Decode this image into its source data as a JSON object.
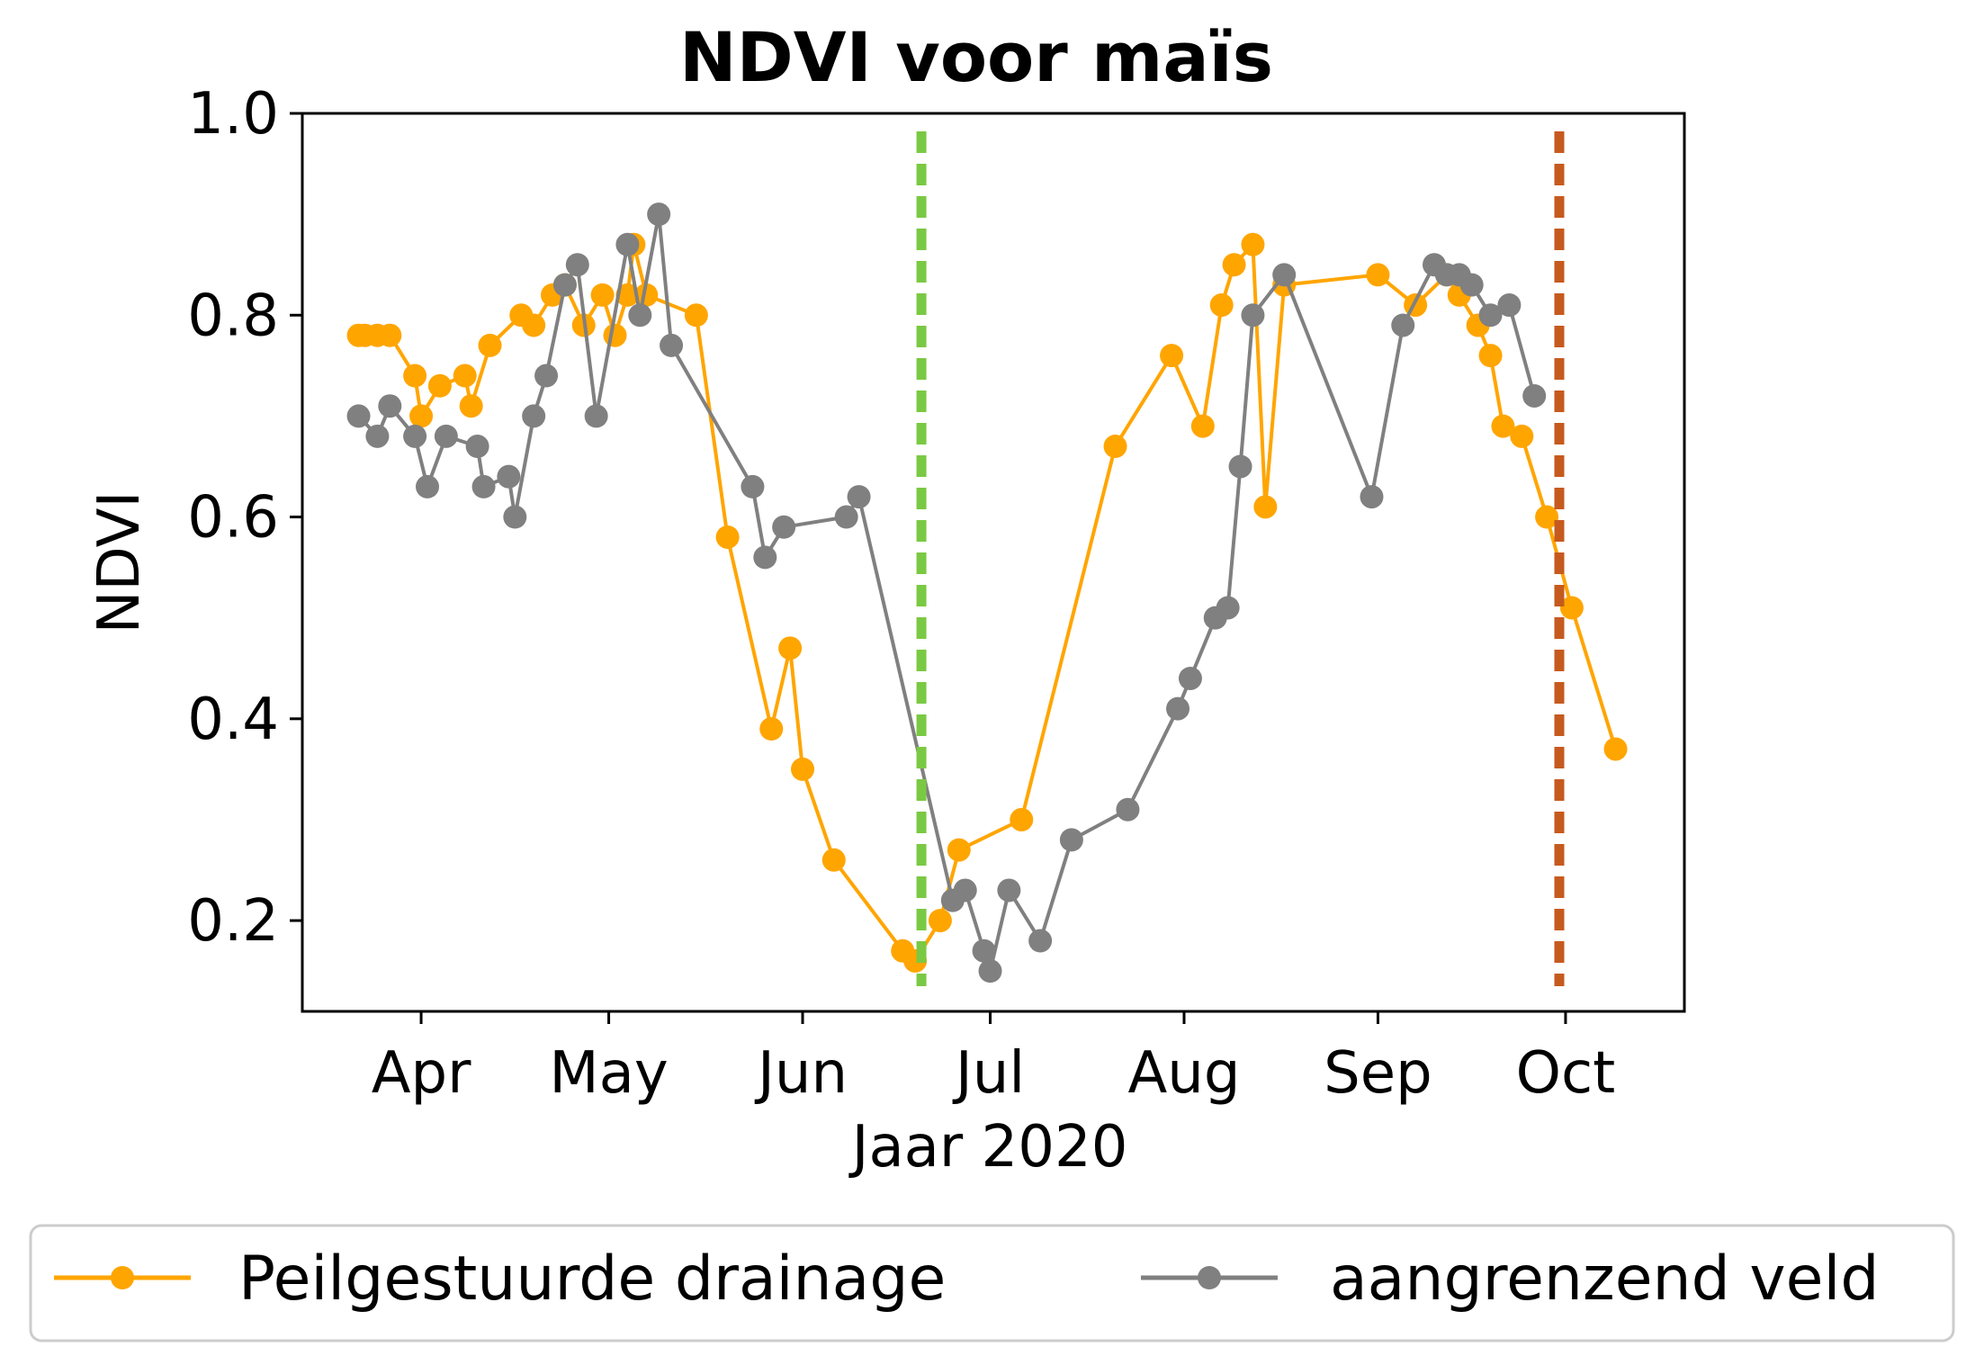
{
  "chart_data": {
    "type": "line",
    "title": "NDVI voor maïs",
    "xlabel": "Jaar 2020",
    "ylabel": "NDVI",
    "xlim": [
      "2020-03-13",
      "2020-10-20"
    ],
    "ylim": [
      0.11,
      1.0
    ],
    "yticks": [
      0.2,
      0.4,
      0.6,
      0.8,
      1.0
    ],
    "ytick_labels": [
      "0.2",
      "0.4",
      "0.6",
      "0.8",
      "1.0"
    ],
    "xticks": [
      "2020-04-01",
      "2020-05-01",
      "2020-06-01",
      "2020-07-01",
      "2020-08-01",
      "2020-09-01",
      "2020-10-01"
    ],
    "xtick_labels": [
      "Apr",
      "May",
      "Jun",
      "Jul",
      "Aug",
      "Sep",
      "Oct"
    ],
    "grid": false,
    "legend_position": "bottom",
    "series": [
      {
        "name": "Peilgestuurde drainage",
        "color": "#ffa500",
        "points": [
          [
            "2020-03-22",
            0.78
          ],
          [
            "2020-03-23",
            0.78
          ],
          [
            "2020-03-25",
            0.78
          ],
          [
            "2020-03-27",
            0.78
          ],
          [
            "2020-03-31",
            0.74
          ],
          [
            "2020-04-01",
            0.7
          ],
          [
            "2020-04-04",
            0.73
          ],
          [
            "2020-04-08",
            0.74
          ],
          [
            "2020-04-09",
            0.71
          ],
          [
            "2020-04-12",
            0.77
          ],
          [
            "2020-04-17",
            0.8
          ],
          [
            "2020-04-19",
            0.79
          ],
          [
            "2020-04-22",
            0.82
          ],
          [
            "2020-04-24",
            0.83
          ],
          [
            "2020-04-27",
            0.79
          ],
          [
            "2020-04-30",
            0.82
          ],
          [
            "2020-05-02",
            0.78
          ],
          [
            "2020-05-04",
            0.82
          ],
          [
            "2020-05-05",
            0.87
          ],
          [
            "2020-05-07",
            0.82
          ],
          [
            "2020-05-15",
            0.8
          ],
          [
            "2020-05-20",
            0.58
          ],
          [
            "2020-05-27",
            0.39
          ],
          [
            "2020-05-30",
            0.47
          ],
          [
            "2020-06-01",
            0.35
          ],
          [
            "2020-06-06",
            0.26
          ],
          [
            "2020-06-17",
            0.17
          ],
          [
            "2020-06-19",
            0.16
          ],
          [
            "2020-06-23",
            0.2
          ],
          [
            "2020-06-26",
            0.27
          ],
          [
            "2020-07-06",
            0.3
          ],
          [
            "2020-07-21",
            0.67
          ],
          [
            "2020-07-30",
            0.76
          ],
          [
            "2020-08-04",
            0.69
          ],
          [
            "2020-08-07",
            0.81
          ],
          [
            "2020-08-09",
            0.85
          ],
          [
            "2020-08-12",
            0.87
          ],
          [
            "2020-08-14",
            0.61
          ],
          [
            "2020-08-17",
            0.83
          ],
          [
            "2020-09-01",
            0.84
          ],
          [
            "2020-09-07",
            0.81
          ],
          [
            "2020-09-12",
            0.84
          ],
          [
            "2020-09-14",
            0.82
          ],
          [
            "2020-09-17",
            0.79
          ],
          [
            "2020-09-19",
            0.76
          ],
          [
            "2020-09-21",
            0.69
          ],
          [
            "2020-09-24",
            0.68
          ],
          [
            "2020-09-28",
            0.6
          ],
          [
            "2020-10-02",
            0.51
          ],
          [
            "2020-10-09",
            0.37
          ]
        ]
      },
      {
        "name": "aangrenzend veld",
        "color": "#808080",
        "points": [
          [
            "2020-03-22",
            0.7
          ],
          [
            "2020-03-25",
            0.68
          ],
          [
            "2020-03-27",
            0.71
          ],
          [
            "2020-03-31",
            0.68
          ],
          [
            "2020-04-02",
            0.63
          ],
          [
            "2020-04-05",
            0.68
          ],
          [
            "2020-04-10",
            0.67
          ],
          [
            "2020-04-11",
            0.63
          ],
          [
            "2020-04-15",
            0.64
          ],
          [
            "2020-04-16",
            0.6
          ],
          [
            "2020-04-19",
            0.7
          ],
          [
            "2020-04-21",
            0.74
          ],
          [
            "2020-04-24",
            0.83
          ],
          [
            "2020-04-26",
            0.85
          ],
          [
            "2020-04-29",
            0.7
          ],
          [
            "2020-05-04",
            0.87
          ],
          [
            "2020-05-06",
            0.8
          ],
          [
            "2020-05-09",
            0.9
          ],
          [
            "2020-05-11",
            0.77
          ],
          [
            "2020-05-24",
            0.63
          ],
          [
            "2020-05-26",
            0.56
          ],
          [
            "2020-05-29",
            0.59
          ],
          [
            "2020-06-08",
            0.6
          ],
          [
            "2020-06-10",
            0.62
          ],
          [
            "2020-06-25",
            0.22
          ],
          [
            "2020-06-27",
            0.23
          ],
          [
            "2020-06-30",
            0.17
          ],
          [
            "2020-07-01",
            0.15
          ],
          [
            "2020-07-04",
            0.23
          ],
          [
            "2020-07-09",
            0.18
          ],
          [
            "2020-07-14",
            0.28
          ],
          [
            "2020-07-23",
            0.31
          ],
          [
            "2020-07-31",
            0.41
          ],
          [
            "2020-08-02",
            0.44
          ],
          [
            "2020-08-06",
            0.5
          ],
          [
            "2020-08-08",
            0.51
          ],
          [
            "2020-08-10",
            0.65
          ],
          [
            "2020-08-12",
            0.8
          ],
          [
            "2020-08-17",
            0.84
          ],
          [
            "2020-08-31",
            0.62
          ],
          [
            "2020-09-05",
            0.79
          ],
          [
            "2020-09-10",
            0.85
          ],
          [
            "2020-09-12",
            0.84
          ],
          [
            "2020-09-14",
            0.84
          ],
          [
            "2020-09-16",
            0.83
          ],
          [
            "2020-09-19",
            0.8
          ],
          [
            "2020-09-22",
            0.81
          ],
          [
            "2020-09-26",
            0.72
          ]
        ]
      }
    ],
    "vertical_lines": [
      {
        "x": "2020-06-20",
        "color": "#7ac943",
        "style": "dashed"
      },
      {
        "x": "2020-09-30",
        "color": "#c65a1e",
        "style": "dashed"
      }
    ]
  }
}
